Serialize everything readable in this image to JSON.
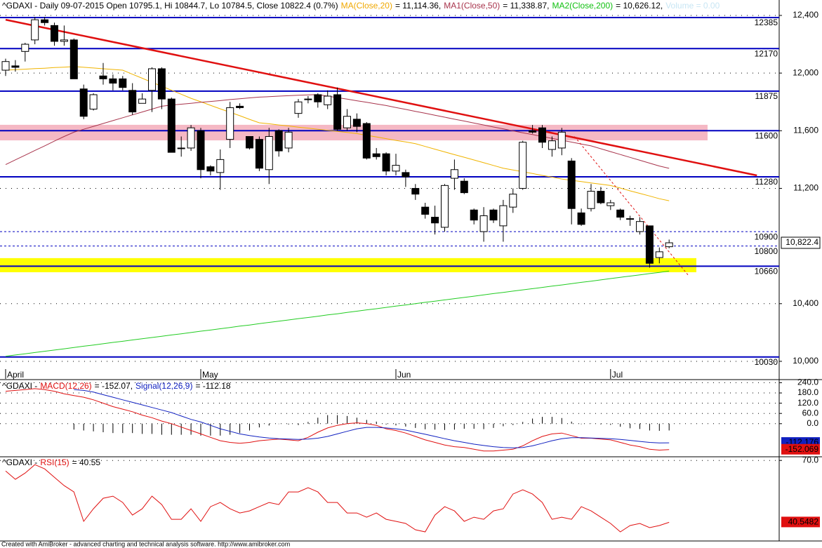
{
  "chart_data": [
    {
      "type": "candlestick",
      "header": [
        {
          "text": "^GDAXI - Daily 09-07-2015 Open 10795.1, Hi 10844.7, Lo 10784.5, Close 10822.4 (0.7%)",
          "color": "#000000"
        },
        {
          "text": "MA(Close,20)",
          "color": "#f0a800"
        },
        {
          "text": "= 11,114.36,",
          "color": "#000000"
        },
        {
          "text": "MA1(Close,50)",
          "color": "#a8344c"
        },
        {
          "text": "= 11,338.87,",
          "color": "#000000"
        },
        {
          "text": "MA2(Close,200)",
          "color": "#10c010"
        },
        {
          "text": "= 10,626.12,",
          "color": "#000000"
        },
        {
          "text": "Volume = 0.00",
          "color": "#c8e6f4"
        }
      ],
      "categories": [
        "April",
        null,
        null,
        null,
        null,
        null,
        null,
        null,
        null,
        null,
        null,
        null,
        null,
        null,
        null,
        null,
        null,
        null,
        null,
        null,
        "May",
        null,
        null,
        null,
        null,
        null,
        null,
        null,
        null,
        null,
        null,
        null,
        null,
        null,
        null,
        null,
        null,
        null,
        null,
        null,
        "Jun",
        null,
        null,
        null,
        null,
        null,
        null,
        null,
        null,
        null,
        null,
        null,
        null,
        null,
        null,
        null,
        null,
        null,
        null,
        null,
        null,
        null,
        "Jul",
        null,
        null,
        null,
        null,
        null,
        null
      ],
      "open": [
        12020,
        12050,
        12150,
        12230,
        12370,
        12330,
        12220,
        12230,
        11890,
        11750,
        11980,
        11960,
        11960,
        11880,
        11790,
        11880,
        12030,
        11820,
        11480,
        11480,
        11600,
        11350,
        11310,
        11540,
        11770,
        11560,
        11540,
        11330,
        11600,
        11480,
        11720,
        11820,
        11850,
        11780,
        11850,
        11620,
        11680,
        11650,
        11440,
        11440,
        11320,
        11310,
        11200,
        11070,
        11000,
        10930,
        11270,
        11250,
        11050,
        10900,
        11050,
        10940,
        11070,
        11200,
        11600,
        11620,
        11470,
        11480,
        11390,
        11030,
        11060,
        11180,
        11080,
        11050,
        10990,
        10900,
        10940,
        10720,
        10795.1
      ],
      "high": [
        12100,
        12090,
        12210,
        12390,
        12390,
        12350,
        12330,
        12240,
        11920,
        11860,
        12070,
        11990,
        11980,
        11930,
        11860,
        12040,
        12040,
        11830,
        11560,
        11640,
        11620,
        11360,
        11470,
        11800,
        11790,
        11560,
        11560,
        11620,
        11610,
        11620,
        11820,
        11840,
        11860,
        11880,
        11900,
        11750,
        11720,
        11660,
        11480,
        11450,
        11440,
        11330,
        11230,
        11100,
        11080,
        11230,
        11400,
        11270,
        11060,
        11070,
        11060,
        11120,
        11200,
        11530,
        11640,
        11640,
        11560,
        11620,
        11410,
        11060,
        11230,
        11210,
        11120,
        11060,
        11010,
        11000,
        10940,
        10790,
        10844.7
      ],
      "low": [
        11980,
        12010,
        12080,
        12200,
        12330,
        12190,
        12190,
        11960,
        11680,
        11740,
        11920,
        11880,
        11880,
        11710,
        11790,
        11730,
        11750,
        11450,
        11420,
        11460,
        11270,
        11290,
        11190,
        11480,
        11750,
        11470,
        11320,
        11230,
        11420,
        11450,
        11690,
        11790,
        11760,
        11750,
        11600,
        11600,
        11590,
        11400,
        11400,
        11290,
        11290,
        11210,
        11120,
        10990,
        10880,
        10900,
        11190,
        11160,
        10950,
        10830,
        10960,
        10830,
        11030,
        11190,
        11580,
        11480,
        11420,
        11430,
        10950,
        10940,
        11040,
        11090,
        11050,
        10980,
        10940,
        10880,
        10650,
        10680,
        10784.5
      ],
      "close": [
        12080,
        12040,
        12200,
        12370,
        12350,
        12220,
        12230,
        11960,
        11700,
        11850,
        11960,
        11930,
        11900,
        11730,
        11820,
        12030,
        11820,
        11450,
        11480,
        11620,
        11330,
        11320,
        11400,
        11760,
        11760,
        11480,
        11340,
        11560,
        11460,
        11590,
        11800,
        11820,
        11800,
        11840,
        11610,
        11700,
        11630,
        11410,
        11420,
        11320,
        11360,
        11280,
        11160,
        11020,
        10960,
        11220,
        11330,
        11170,
        10980,
        11010,
        10980,
        11080,
        11160,
        11520,
        11590,
        11520,
        11530,
        11590,
        11060,
        10950,
        11180,
        11100,
        11100,
        11000,
        10990,
        10970,
        10680,
        10760,
        10822.4
      ],
      "close_label": "10,822.4",
      "series": [
        {
          "color": "#f0b400",
          "values": [
            12020,
            12024,
            12027,
            12031,
            12034,
            12038,
            12041,
            12045,
            12040,
            12035,
            12030,
            12025,
            12020,
            11992,
            11964,
            11936,
            11909,
            11881,
            11853,
            11825,
            11801,
            11776,
            11752,
            11728,
            11704,
            11679,
            11655,
            11648,
            11640,
            11633,
            11625,
            11618,
            11610,
            11603,
            11595,
            11588,
            11580,
            11568,
            11557,
            11545,
            11533,
            11522,
            11510,
            11491,
            11472,
            11453,
            11434,
            11416,
            11397,
            11378,
            11359,
            11340,
            11328,
            11315,
            11303,
            11290,
            11278,
            11265,
            11256,
            11247,
            11238,
            11229,
            11220,
            11202,
            11183,
            11165,
            11147,
            11128,
            11114.36
          ]
        },
        {
          "color": "#a8344c",
          "values": [
            11365,
            11398,
            11430,
            11463,
            11495,
            11528,
            11560,
            11590,
            11610,
            11630,
            11650,
            11670,
            11690,
            11710,
            11730,
            11750,
            11770,
            11778,
            11784,
            11790,
            11797,
            11803,
            11809,
            11816,
            11822,
            11828,
            11833,
            11836,
            11840,
            11843,
            11846,
            11849,
            11851,
            11840,
            11830,
            11819,
            11808,
            11797,
            11786,
            11775,
            11761,
            11748,
            11734,
            11721,
            11707,
            11694,
            11680,
            11667,
            11653,
            11640,
            11626,
            11613,
            11599,
            11586,
            11573,
            11560,
            11547,
            11534,
            11521,
            11508,
            11495,
            11475,
            11455,
            11435,
            11415,
            11395,
            11375,
            11355,
            11338.87
          ]
        },
        {
          "color": "#22cc22",
          "values": [
            10035,
            10044,
            10052,
            10061,
            10070,
            10078,
            10087,
            10096,
            10105,
            10113,
            10122,
            10131,
            10139,
            10148,
            10157,
            10165,
            10174,
            10183,
            10191,
            10200,
            10209,
            10217,
            10226,
            10235,
            10244,
            10252,
            10261,
            10270,
            10278,
            10287,
            10296,
            10304,
            10313,
            10322,
            10330,
            10339,
            10348,
            10357,
            10365,
            10374,
            10383,
            10391,
            10400,
            10409,
            10417,
            10426,
            10435,
            10443,
            10452,
            10461,
            10470,
            10478,
            10487,
            10496,
            10504,
            10513,
            10522,
            10530,
            10539,
            10548,
            10556,
            10565,
            10574,
            10583,
            10591,
            10600,
            10609,
            10617,
            10626.12
          ]
        }
      ],
      "levels": [
        {
          "value": 12385,
          "dash": false
        },
        {
          "value": 12170,
          "dash": false
        },
        {
          "value": 11875,
          "dash": false
        },
        {
          "value": 11600,
          "dash": false
        },
        {
          "value": 11280,
          "dash": false
        },
        {
          "value": 10900,
          "dash": true
        },
        {
          "value": 10800,
          "dash": true
        },
        {
          "value": 10660,
          "dash": false
        },
        {
          "value": 10030,
          "dash": false
        }
      ],
      "zones": [
        {
          "from": 11533,
          "to": 11641,
          "color": "#f5b8c4"
        },
        {
          "from": 10618,
          "to": 10716,
          "color": "#ffff00"
        }
      ],
      "trendlines": [
        {
          "x": [
            0,
            77
          ],
          "y": [
            12370,
            11290
          ],
          "color": "#e01010",
          "dash": false
        },
        {
          "x": [
            58.3,
            70
          ],
          "y": [
            11560,
            10594
          ],
          "color": "#e01010",
          "dash": true
        }
      ],
      "ylim": [
        9878,
        12507
      ],
      "yticks": [
        {
          "value": 12400,
          "label": "12,400"
        },
        {
          "value": 12000,
          "label": "12,000"
        },
        {
          "value": 11600,
          "label": "11,600"
        },
        {
          "value": 11200,
          "label": "11,200"
        },
        {
          "value": 10400,
          "label": "10,400"
        },
        {
          "value": 10000,
          "label": "10,000"
        }
      ],
      "grid": true
    },
    {
      "type": "macd",
      "header": [
        {
          "text": "^GDAXI -",
          "color": "#000000"
        },
        {
          "text": "MACD(12,26)",
          "color": "#e01010"
        },
        {
          "text": "= -152.07,",
          "color": "#000000"
        },
        {
          "text": "Signal(12,26,9)",
          "color": "#1020c0"
        },
        {
          "text": "= -112.18",
          "color": "#000000"
        }
      ],
      "series": [
        {
          "color": "#e01010",
          "last_label": "-152.069",
          "values": [
            190,
            195,
            200,
            205,
            200,
            190,
            175,
            165,
            155,
            140,
            120,
            100,
            85,
            70,
            50,
            35,
            15,
            0,
            -20,
            -40,
            -60,
            -80,
            -100,
            -110,
            -115,
            -110,
            -100,
            -95,
            -90,
            -95,
            -100,
            -80,
            -50,
            -25,
            -10,
            0,
            5,
            0,
            -10,
            -30,
            -40,
            -55,
            -75,
            -95,
            -110,
            -125,
            -135,
            -140,
            -150,
            -160,
            -160,
            -155,
            -150,
            -130,
            -100,
            -75,
            -60,
            -55,
            -70,
            -85,
            -85,
            -90,
            -95,
            -110,
            -125,
            -135,
            -150,
            -155,
            -152.069
          ]
        },
        {
          "color": "#1020c0",
          "last_label": "-112.176",
          "values": [
            null,
            null,
            null,
            null,
            null,
            null,
            null,
            200,
            195,
            185,
            170,
            155,
            140,
            125,
            110,
            95,
            80,
            65,
            45,
            25,
            10,
            -10,
            -30,
            -45,
            -60,
            -70,
            -78,
            -84,
            -88,
            -90,
            -92,
            -90,
            -85,
            -75,
            -60,
            -45,
            -30,
            -22,
            -22,
            -25,
            -30,
            -38,
            -50,
            -62,
            -75,
            -88,
            -100,
            -110,
            -120,
            -128,
            -135,
            -140,
            -142,
            -140,
            -130,
            -115,
            -100,
            -88,
            -82,
            -82,
            -84,
            -86,
            -88,
            -92,
            -98,
            -104,
            -110,
            -113,
            -112.176
          ]
        }
      ],
      "ylim": [
        -190,
        250
      ],
      "yticks": [
        {
          "value": 240,
          "label": "240.0"
        },
        {
          "value": 180,
          "label": "180.0"
        },
        {
          "value": 120,
          "label": "120.0"
        },
        {
          "value": 60,
          "label": "60.0"
        },
        {
          "value": 0,
          "label": "0.0"
        }
      ],
      "grid": true
    },
    {
      "type": "rsi",
      "header": [
        {
          "text": "^GDAXI -",
          "color": "#000000"
        },
        {
          "text": "RSI(15)",
          "color": "#e01010"
        },
        {
          "text": "= 40.55",
          "color": "#000000"
        }
      ],
      "series": [
        {
          "color": "#e01010",
          "last_label": "40.5482",
          "values": [
            65,
            61,
            64,
            68,
            66,
            62,
            58,
            55,
            41,
            47,
            52,
            53,
            50,
            44,
            47,
            53,
            49,
            42,
            42,
            47,
            41,
            48,
            50,
            47,
            45,
            46,
            48,
            50,
            49,
            55,
            55,
            57,
            55,
            50,
            50,
            45,
            45,
            43,
            45,
            42,
            41,
            40,
            37,
            36,
            44,
            48,
            46,
            41,
            43,
            42,
            46,
            47,
            54,
            56,
            54,
            50,
            42,
            43,
            42,
            48,
            46,
            43,
            40,
            36,
            39,
            40,
            38,
            39,
            40.5482
          ]
        }
      ],
      "ylim": [
        32,
        71.4
      ],
      "yticks": [
        {
          "value": 70,
          "label": "70.0"
        }
      ],
      "grid": true
    }
  ],
  "footer": "Created with AmiBroker - advanced charting and technical analysis software. http://www.amibroker.com"
}
